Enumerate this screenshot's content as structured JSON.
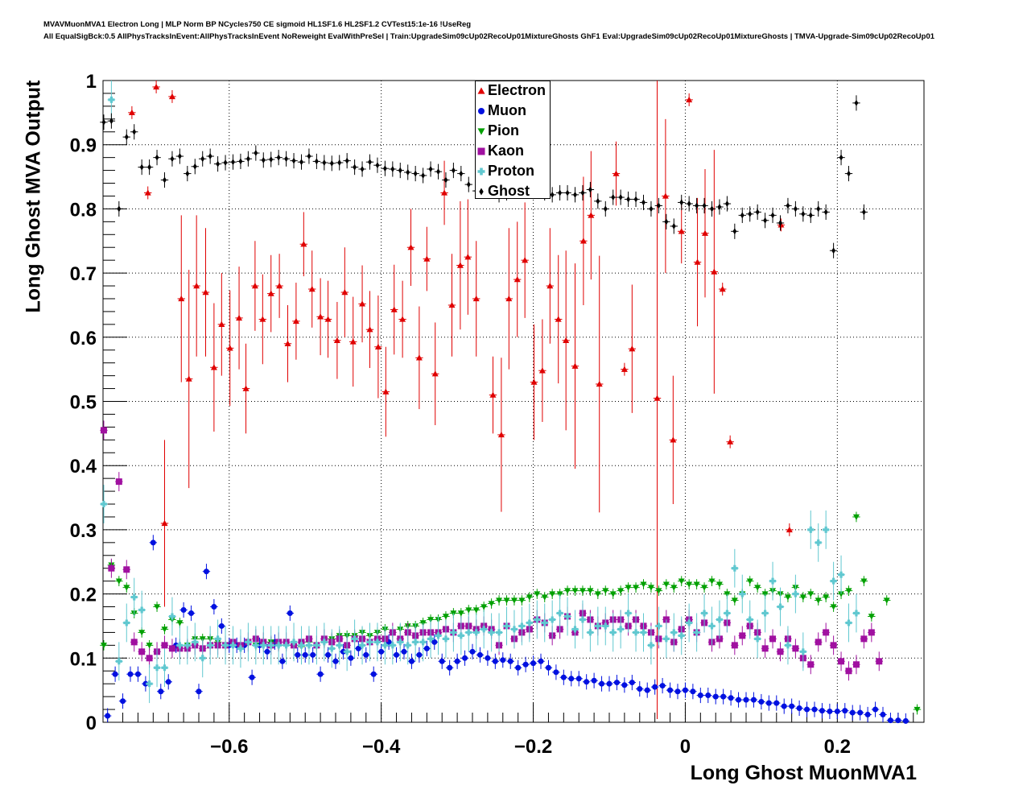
{
  "header": {
    "line1": "MVAVMuonMVA1 Electron Long | MLP Norm BP NCycles750 CE sigmoid HL1SF1.6 HL2SF1.2 CVTest15:1e-16 !UseReg",
    "line2": "All EqualSigBck:0.5 AllPhysTracksInEvent:AllPhysTracksInEvent NoReweight EvalWithPreSel | Train:UpgradeSim09cUp02RecoUp01MixtureGhosts GhF1 Eval:UpgradeSim09cUp02RecoUp01MixtureGhosts | TMVA-Upgrade-Sim09cUp02RecoUp01"
  },
  "chart_data": {
    "type": "scatter",
    "title": "",
    "xlabel": "Long Ghost MuonMVA1",
    "ylabel": "Long Ghost MVA Output",
    "xlim": [
      -0.766,
      0.314
    ],
    "ylim": [
      0,
      1
    ],
    "grid": true,
    "legend_position": "top-center",
    "xticks": [
      -0.6,
      -0.4,
      -0.2,
      0,
      0.2
    ],
    "xtick_labels": [
      "−0.6",
      "−0.4",
      "−0.2",
      "0",
      "0.2"
    ],
    "yticks": [
      0,
      0.1,
      0.2,
      0.3,
      0.4,
      0.5,
      0.6,
      0.7,
      0.8,
      0.9,
      1
    ],
    "ytick_labels": [
      "0",
      "0.1",
      "0.2",
      "0.3",
      "0.4",
      "0.5",
      "0.6",
      "0.7",
      "0.8",
      "0.9",
      "1"
    ],
    "series": [
      {
        "name": "Electron",
        "color": "#e00000",
        "marker": "triangle-up",
        "points": [
          [
            -0.728,
            0.95,
            0.01
          ],
          [
            -0.707,
            0.825,
            0.01
          ],
          [
            -0.696,
            0.99,
            0.01
          ],
          [
            -0.685,
            0.31,
            0.13
          ],
          [
            -0.675,
            0.975,
            0.01
          ],
          [
            -0.663,
            0.66,
            0.13
          ],
          [
            -0.653,
            0.535,
            0.17
          ],
          [
            -0.643,
            0.68,
            0.11
          ],
          [
            -0.631,
            0.67,
            0.1
          ],
          [
            -0.62,
            0.553,
            0.1
          ],
          [
            -0.61,
            0.62,
            0.08
          ],
          [
            -0.599,
            0.583,
            0.09
          ],
          [
            -0.587,
            0.63,
            0.08
          ],
          [
            -0.578,
            0.52,
            0.07
          ],
          [
            -0.566,
            0.68,
            0.07
          ],
          [
            -0.556,
            0.628,
            0.07
          ],
          [
            -0.545,
            0.668,
            0.06
          ],
          [
            -0.534,
            0.68,
            0.05
          ],
          [
            -0.523,
            0.59,
            0.06
          ],
          [
            -0.512,
            0.625,
            0.06
          ],
          [
            -0.502,
            0.745,
            0.05
          ],
          [
            -0.491,
            0.675,
            0.06
          ],
          [
            -0.48,
            0.632,
            0.06
          ],
          [
            -0.47,
            0.628,
            0.06
          ],
          [
            -0.458,
            0.595,
            0.06
          ],
          [
            -0.448,
            0.67,
            0.07
          ],
          [
            -0.437,
            0.593,
            0.07
          ],
          [
            -0.425,
            0.652,
            0.06
          ],
          [
            -0.415,
            0.612,
            0.06
          ],
          [
            -0.404,
            0.585,
            0.08
          ],
          [
            -0.394,
            0.515,
            0.07
          ],
          [
            -0.383,
            0.643,
            0.07
          ],
          [
            -0.372,
            0.628,
            0.06
          ],
          [
            -0.361,
            0.74,
            0.06
          ],
          [
            -0.35,
            0.568,
            0.08
          ],
          [
            -0.34,
            0.722,
            0.05
          ],
          [
            -0.329,
            0.543,
            0.08
          ],
          [
            -0.317,
            0.825,
            0.05
          ],
          [
            -0.307,
            0.65,
            0.08
          ],
          [
            -0.296,
            0.712,
            0.1
          ],
          [
            -0.286,
            0.725,
            0.09
          ],
          [
            -0.275,
            0.66,
            0.09
          ],
          [
            -0.253,
            0.51,
            0.06
          ],
          [
            -0.242,
            0.448,
            0.12
          ],
          [
            -0.232,
            0.66,
            0.11
          ],
          [
            -0.221,
            0.69,
            0.09
          ],
          [
            -0.211,
            0.72,
            0.09
          ],
          [
            -0.199,
            0.53,
            0.09
          ],
          [
            -0.188,
            0.548,
            0.08
          ],
          [
            -0.178,
            0.68,
            0.09
          ],
          [
            -0.167,
            0.628,
            0.1
          ],
          [
            -0.157,
            0.595,
            0.14
          ],
          [
            -0.145,
            0.555,
            0.16
          ],
          [
            -0.134,
            0.75,
            0.1
          ],
          [
            -0.124,
            0.79,
            0.1
          ],
          [
            -0.113,
            0.527,
            0.2
          ],
          [
            -0.091,
            0.855,
            0.05
          ],
          [
            -0.08,
            0.55,
            0.01
          ],
          [
            -0.07,
            0.582,
            0.1
          ],
          [
            -0.037,
            0.505,
            0.5
          ],
          [
            -0.026,
            0.82,
            0.12
          ],
          [
            -0.016,
            0.44,
            0.1
          ],
          [
            -0.005,
            0.765,
            0.05
          ],
          [
            0.005,
            0.97,
            0.01
          ],
          [
            0.016,
            0.717,
            0.1
          ],
          [
            0.026,
            0.762,
            0.1
          ],
          [
            0.038,
            0.702,
            0.19
          ],
          [
            0.049,
            0.675,
            0.01
          ],
          [
            0.059,
            0.437,
            0.01
          ],
          [
            0.126,
            0.775,
            0.01
          ],
          [
            0.137,
            0.3,
            0.01
          ]
        ]
      },
      {
        "name": "Muon",
        "color": "#0010e0",
        "marker": "circle",
        "x0": -0.76,
        "step": 0.01,
        "err": 0.012,
        "values": [
          0.01,
          0.075,
          0.033,
          0.075,
          0.075,
          0.06,
          0.28,
          0.048,
          0.063,
          0.12,
          0.175,
          0.17,
          0.048,
          0.235,
          0.18,
          0.15,
          0.12,
          0.12,
          0.12,
          0.07,
          0.12,
          0.11,
          0.125,
          0.095,
          0.17,
          0.105,
          0.105,
          0.105,
          0.075,
          0.105,
          0.095,
          0.11,
          0.1,
          0.115,
          0.105,
          0.075,
          0.11,
          0.125,
          0.105,
          0.11,
          0.095,
          0.105,
          0.115,
          0.125,
          0.095,
          0.085,
          0.095,
          0.1,
          0.11,
          0.105,
          0.1,
          0.095,
          0.097,
          0.095,
          0.085,
          0.09,
          0.092,
          0.095,
          0.085,
          0.078,
          0.07,
          0.068,
          0.068,
          0.063,
          0.065,
          0.06,
          0.06,
          0.062,
          0.058,
          0.062,
          0.052,
          0.05,
          0.055,
          0.057,
          0.05,
          0.048,
          0.05,
          0.048,
          0.042,
          0.042,
          0.04,
          0.04,
          0.038,
          0.035,
          0.035,
          0.035,
          0.032,
          0.03,
          0.03,
          0.025,
          0.025,
          0.022,
          0.02,
          0.02,
          0.018,
          0.017,
          0.017,
          0.018,
          0.015,
          0.015,
          0.012,
          0.02,
          0.012,
          0.003,
          0.003,
          0.002
        ]
      },
      {
        "name": "Pion",
        "color": "#00a000",
        "marker": "triangle-down",
        "x0": -0.765,
        "step": 0.01,
        "err": 0.008,
        "values": [
          0.12,
          0.245,
          0.22,
          0.21,
          0.17,
          0.14,
          0.12,
          0.18,
          0.145,
          0.16,
          0.155,
          0.12,
          0.13,
          0.13,
          0.13,
          0.125,
          0.12,
          0.125,
          0.12,
          0.125,
          0.12,
          0.125,
          0.125,
          0.12,
          0.12,
          0.12,
          0.118,
          0.125,
          0.12,
          0.125,
          0.13,
          0.135,
          0.135,
          0.135,
          0.14,
          0.135,
          0.14,
          0.145,
          0.14,
          0.145,
          0.15,
          0.15,
          0.155,
          0.16,
          0.16,
          0.165,
          0.17,
          0.17,
          0.175,
          0.175,
          0.18,
          0.185,
          0.19,
          0.19,
          0.19,
          0.19,
          0.195,
          0.2,
          0.195,
          0.2,
          0.2,
          0.205,
          0.205,
          0.205,
          0.205,
          0.2,
          0.205,
          0.2,
          0.205,
          0.21,
          0.21,
          0.215,
          0.21,
          0.205,
          0.215,
          0.21,
          0.22,
          0.215,
          0.215,
          0.21,
          0.22,
          0.215,
          0.2,
          0.19,
          0.2,
          0.22,
          0.21,
          0.2,
          0.205,
          0.2,
          0.195,
          0.21,
          0.195,
          0.2,
          0.19,
          0.195,
          0.18,
          0.2,
          0.205,
          0.32,
          0.22,
          0.165,
          null,
          0.19,
          null,
          null,
          null,
          0.02
        ]
      },
      {
        "name": "Kaon",
        "color": "#a010a0",
        "marker": "square",
        "x0": -0.765,
        "step": 0.01,
        "err": 0.015,
        "values": [
          0.455,
          0.24,
          0.375,
          0.238,
          0.125,
          0.11,
          0.1,
          0.11,
          0.12,
          0.115,
          0.115,
          0.115,
          0.12,
          0.115,
          0.12,
          0.12,
          0.12,
          0.125,
          0.12,
          0.125,
          0.13,
          0.125,
          0.12,
          0.125,
          0.125,
          0.12,
          0.125,
          0.13,
          0.12,
          0.13,
          0.125,
          0.13,
          0.12,
          0.13,
          0.13,
          0.125,
          0.13,
          0.13,
          0.14,
          0.13,
          0.14,
          0.135,
          0.14,
          0.14,
          0.14,
          0.145,
          0.14,
          0.15,
          0.15,
          0.145,
          0.15,
          0.145,
          0.12,
          0.15,
          0.13,
          0.14,
          0.145,
          0.16,
          0.155,
          0.135,
          0.145,
          0.165,
          0.14,
          0.17,
          0.16,
          0.15,
          0.155,
          0.16,
          0.16,
          0.15,
          0.16,
          0.15,
          0.14,
          0.13,
          0.16,
          0.125,
          0.145,
          0.16,
          0.14,
          0.155,
          0.125,
          0.13,
          0.155,
          0.12,
          0.135,
          0.15,
          0.14,
          0.115,
          0.13,
          0.11,
          0.13,
          0.115,
          0.1,
          0.09,
          0.125,
          0.14,
          0.12,
          0.095,
          0.08,
          0.09,
          0.13,
          0.14,
          0.095
        ]
      },
      {
        "name": "Proton",
        "color": "#60c8d0",
        "marker": "cross",
        "x0": -0.765,
        "step": 0.01,
        "err": 0.03,
        "values": [
          0.34,
          0.97,
          0.095,
          0.155,
          0.195,
          0.175,
          0.06,
          0.085,
          0.085,
          0.165,
          0.12,
          0.12,
          0.125,
          0.1,
          0.12,
          0.13,
          0.12,
          0.12,
          0.115,
          0.125,
          0.12,
          0.12,
          0.12,
          0.12,
          0.12,
          0.125,
          0.12,
          0.12,
          0.12,
          0.125,
          0.115,
          0.12,
          0.11,
          0.13,
          0.12,
          0.125,
          0.125,
          0.12,
          0.12,
          0.125,
          0.12,
          0.125,
          0.125,
          0.13,
          0.135,
          0.13,
          0.14,
          0.135,
          0.14,
          0.14,
          0.145,
          0.14,
          0.14,
          0.15,
          0.145,
          0.15,
          0.155,
          0.16,
          0.155,
          0.16,
          0.17,
          0.165,
          0.145,
          0.16,
          0.14,
          0.15,
          0.15,
          0.14,
          0.145,
          0.17,
          0.14,
          0.14,
          0.12,
          0.15,
          0.13,
          0.14,
          0.135,
          0.155,
          0.14,
          0.17,
          0.15,
          0.16,
          0.17,
          0.24,
          0.2,
          0.16,
          0.13,
          0.17,
          0.22,
          0.18,
          0.12,
          0.2,
          0.11,
          0.3,
          0.28,
          0.3,
          0.22,
          0.23,
          0.155,
          0.17
        ]
      },
      {
        "name": "Ghost",
        "color": "#000000",
        "marker": "diamond",
        "x0": -0.765,
        "step": 0.01,
        "err": 0.012,
        "values": [
          0.935,
          0.937,
          0.8,
          0.912,
          0.92,
          0.865,
          0.865,
          0.88,
          0.845,
          0.878,
          0.882,
          0.855,
          0.866,
          0.878,
          0.882,
          0.87,
          0.872,
          0.873,
          0.874,
          0.878,
          0.887,
          0.876,
          0.877,
          0.88,
          0.878,
          0.875,
          0.873,
          0.882,
          0.874,
          0.872,
          0.871,
          0.872,
          0.875,
          0.865,
          0.862,
          0.873,
          0.868,
          0.863,
          0.862,
          0.86,
          0.857,
          0.855,
          0.852,
          0.862,
          0.858,
          0.845,
          0.86,
          0.855,
          0.838,
          0.828,
          0.84,
          0.835,
          0.822,
          0.825,
          0.83,
          0.838,
          0.838,
          0.838,
          0.825,
          0.822,
          0.825,
          0.825,
          0.822,
          0.825,
          0.83,
          0.812,
          0.8,
          0.818,
          0.818,
          0.815,
          0.815,
          0.81,
          0.8,
          0.805,
          0.78,
          0.773,
          0.81,
          0.808,
          0.805,
          0.805,
          0.8,
          0.803,
          0.808,
          0.765,
          0.79,
          0.792,
          0.795,
          0.782,
          0.79,
          0.778,
          0.805,
          0.8,
          0.792,
          0.79,
          0.8,
          0.795,
          0.735,
          0.88,
          0.855,
          0.965,
          0.795
        ]
      }
    ]
  }
}
